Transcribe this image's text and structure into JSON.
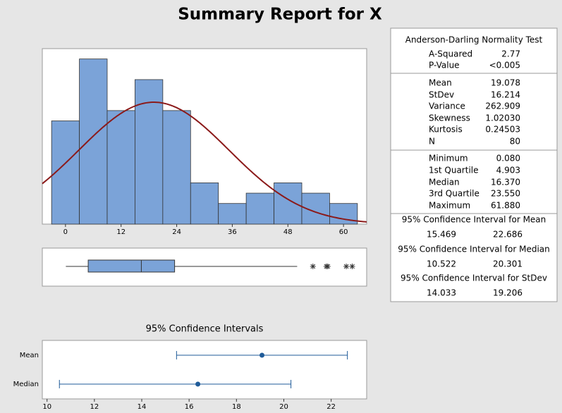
{
  "title": "Summary Report for X",
  "chart_data": [
    {
      "type": "histogram",
      "bins": [
        -3,
        3,
        9,
        15,
        21,
        27,
        33,
        39,
        45,
        51,
        57,
        63
      ],
      "counts": [
        10,
        16,
        11,
        14,
        11,
        4,
        2,
        3,
        4,
        3,
        2
      ],
      "xlim": [
        -5,
        65
      ],
      "xticks": [
        0,
        12,
        24,
        36,
        48,
        60
      ],
      "ylim": [
        0,
        17
      ],
      "color": "#7ba3d8",
      "curve_color": "#8b1a1a"
    },
    {
      "type": "box",
      "xlim": [
        -5,
        65
      ],
      "whiskers": [
        0.08,
        50.0
      ],
      "q1": 4.903,
      "median": 16.37,
      "q3": 23.55,
      "outliers": [
        53.4,
        56.3,
        56.6,
        60.6,
        61.88
      ],
      "color": "#7ba3d8"
    },
    {
      "type": "interval",
      "title": "95% Confidence Intervals",
      "categories": [
        "Mean",
        "Median"
      ],
      "values": [
        19.078,
        16.37
      ],
      "lower": [
        15.469,
        10.522
      ],
      "upper": [
        22.686,
        20.301
      ],
      "xlim": [
        9.8,
        23.5
      ],
      "xticks": [
        10,
        12,
        14,
        16,
        18,
        20,
        22
      ],
      "color": "#1f5b99"
    }
  ],
  "report": {
    "sections": [
      {
        "title": "Anderson-Darling Normality Test",
        "rows": [
          [
            "A-Squared",
            "2.77"
          ],
          [
            "P-Value",
            "<0.005"
          ]
        ]
      },
      {
        "rows": [
          [
            "Mean",
            "19.078"
          ],
          [
            "StDev",
            "16.214"
          ],
          [
            "Variance",
            "262.909"
          ],
          [
            "Skewness",
            "1.02030"
          ],
          [
            "Kurtosis",
            "0.24503"
          ],
          [
            "N",
            "80"
          ]
        ]
      },
      {
        "rows": [
          [
            "Minimum",
            "0.080"
          ],
          [
            "1st Quartile",
            "4.903"
          ],
          [
            "Median",
            "16.370"
          ],
          [
            "3rd Quartile",
            "23.550"
          ],
          [
            "Maximum",
            "61.880"
          ]
        ]
      },
      {
        "title": "95% Confidence Interval for Mean",
        "rows": [
          [
            "15.469",
            "22.686"
          ]
        ]
      },
      {
        "title": "95% Confidence Interval for Median",
        "rows": [
          [
            "10.522",
            "20.301"
          ]
        ]
      },
      {
        "title": "95% Confidence Interval for StDev",
        "rows": [
          [
            "14.033",
            "19.206"
          ]
        ]
      }
    ]
  }
}
